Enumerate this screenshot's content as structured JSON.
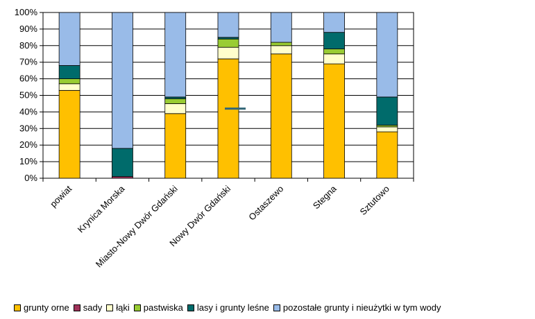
{
  "chart_data": {
    "type": "bar",
    "stacked": true,
    "percent": true,
    "categories": [
      "powiat",
      "Krynica Morska",
      "Miasto-Nowy Dwór Gdański",
      "Nowy Dwór Gdański",
      "Ostaszewo",
      "Stegna",
      "Sztutowo"
    ],
    "series": [
      {
        "name": "grunty orne",
        "color": "#FFC000",
        "values": [
          53,
          0,
          39,
          72,
          75,
          69,
          28
        ]
      },
      {
        "name": "sady",
        "color": "#A0325A",
        "values": [
          0,
          1,
          0,
          0,
          0,
          0,
          0
        ]
      },
      {
        "name": "łąki",
        "color": "#FFFFCC",
        "values": [
          4,
          0,
          6,
          7,
          5,
          6,
          3
        ]
      },
      {
        "name": "pastwiska",
        "color": "#99CC33",
        "values": [
          3,
          0,
          3,
          5,
          2,
          3,
          1
        ]
      },
      {
        "name": "lasy i grunty leśne",
        "color": "#006B6B",
        "values": [
          8,
          17,
          1,
          1,
          0,
          10,
          17
        ]
      },
      {
        "name": "pozostałe grunty i nieużytki w tym wody",
        "color": "#99BBE8",
        "values": [
          32,
          82,
          51,
          15,
          18,
          12,
          51
        ]
      }
    ],
    "y_ticks": [
      "0%",
      "10%",
      "20%",
      "30%",
      "40%",
      "50%",
      "60%",
      "70%",
      "80%",
      "90%",
      "100%"
    ],
    "ylim": [
      0,
      100
    ],
    "grid": true,
    "legend_position": "bottom",
    "annotation_marker": {
      "category": "Nowy Dwór Gdański",
      "value": 42,
      "color": "#336677"
    }
  }
}
